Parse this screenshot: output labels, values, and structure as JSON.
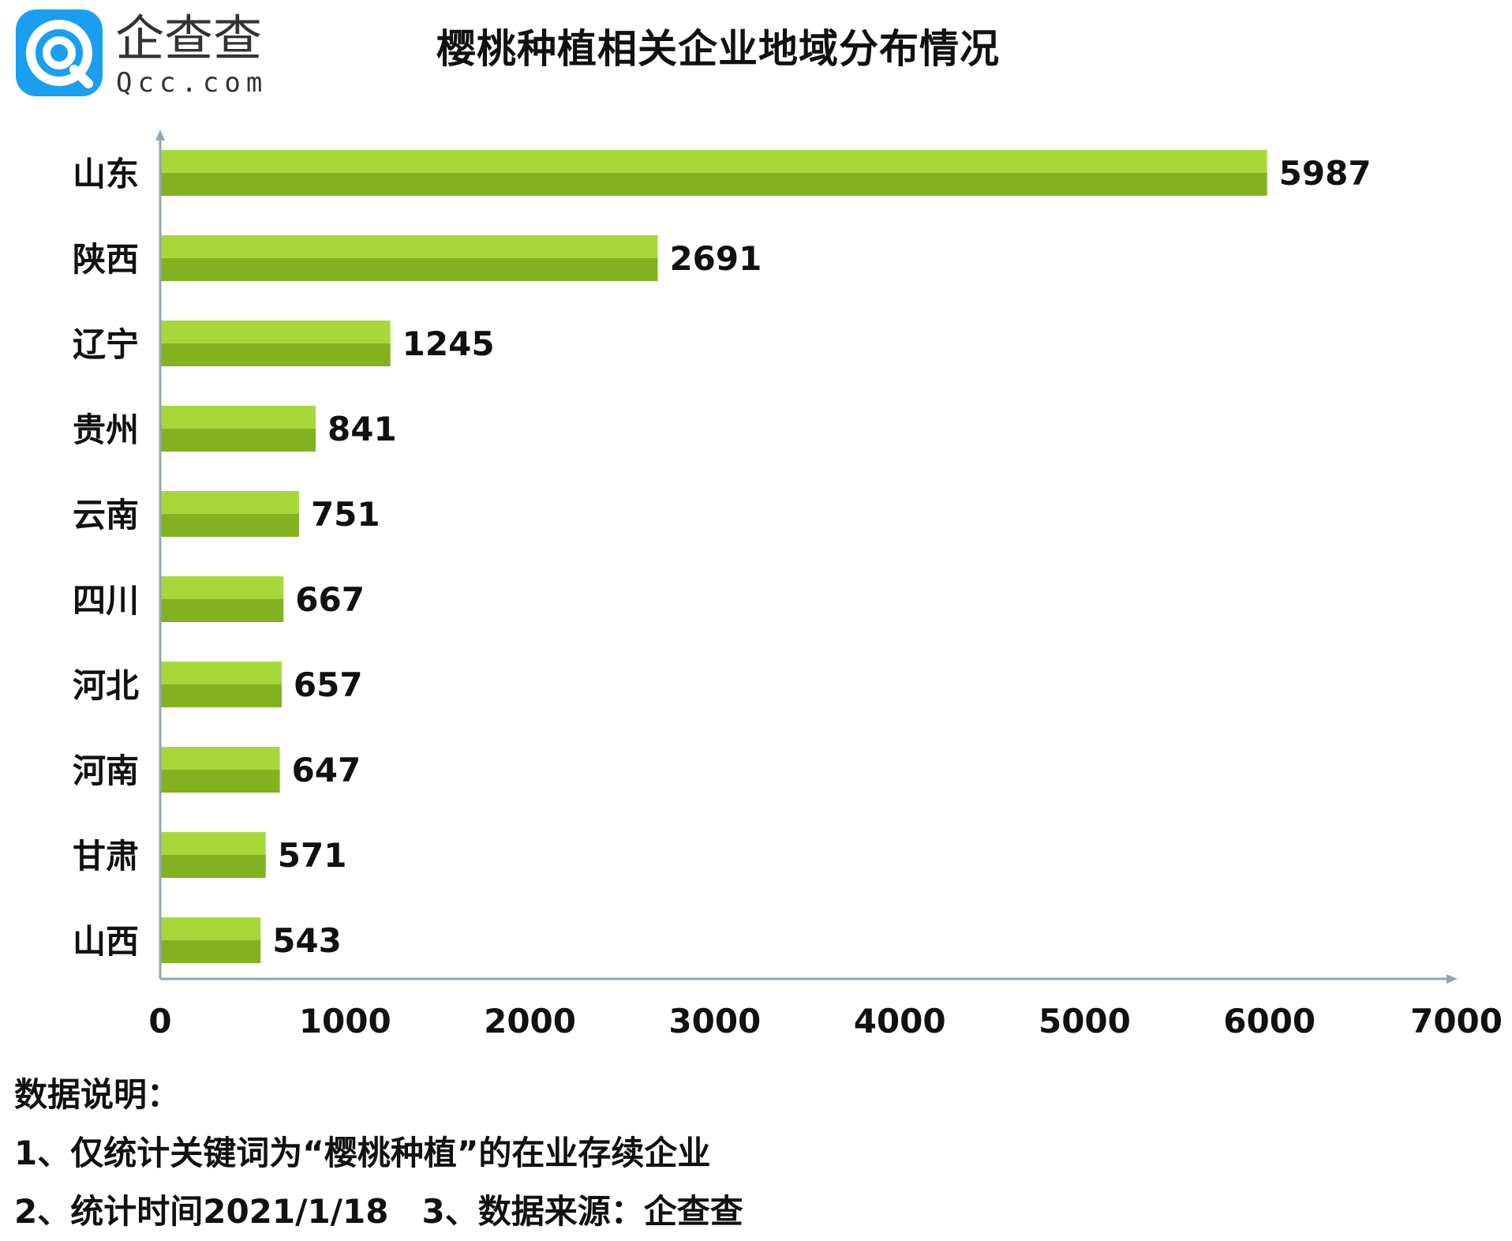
{
  "logo": {
    "name": "企查查",
    "domain": "Qcc.com",
    "color": "#1A9FF0"
  },
  "chart_data": {
    "type": "bar",
    "orientation": "horizontal",
    "title": "樱桃种植相关企业地域分布情况",
    "categories": [
      "山东",
      "陕西",
      "辽宁",
      "贵州",
      "云南",
      "四川",
      "河北",
      "河南",
      "甘肃",
      "山西"
    ],
    "values": [
      5987,
      2691,
      1245,
      841,
      751,
      667,
      657,
      647,
      571,
      543
    ],
    "xlim": [
      0,
      7000
    ],
    "xticks": [
      "0",
      "1000",
      "2000",
      "3000",
      "4000",
      "5000",
      "6000",
      "7000"
    ],
    "grid": false,
    "legend": "none",
    "bar_colors": {
      "top": "#A7D83A",
      "bottom": "#82B21F"
    },
    "axis_color": "#8FA7B3"
  },
  "notes": {
    "heading": "数据说明：",
    "line1": "1、仅统计关键词为“樱桃种植”的在业存续企业",
    "line2": "2、统计时间2021/1/18　3、数据来源：企查查"
  }
}
